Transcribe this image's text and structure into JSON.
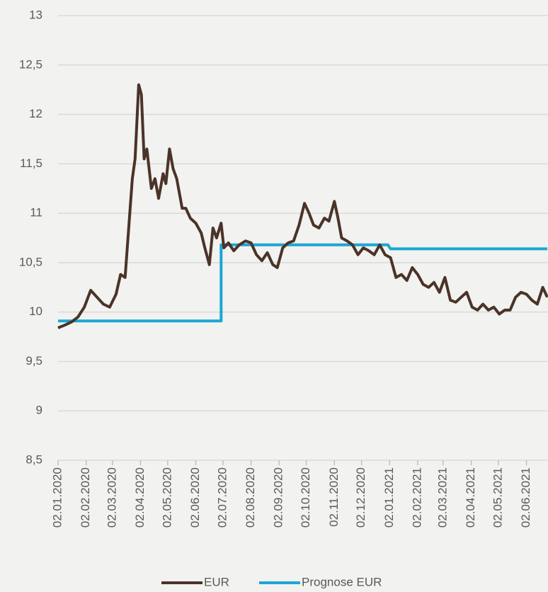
{
  "chart_data": {
    "type": "line",
    "xlim": [
      "02.01.2020",
      "25.06.2021"
    ],
    "xticks": [
      "02.01.2020",
      "02.02.2020",
      "02.03.2020",
      "02.04.2020",
      "02.05.2020",
      "02.06.2020",
      "02.07.2020",
      "02.08.2020",
      "02.09.2020",
      "02.10.2020",
      "02.11.2020",
      "02.12.2020",
      "02.01.2021",
      "02.02.2021",
      "02.03.2021",
      "02.04.2021",
      "02.05.2021",
      "02.06.2021"
    ],
    "ylim": [
      8.5,
      13
    ],
    "yticks": [
      {
        "value": 8.5,
        "label": "8,5"
      },
      9,
      {
        "value": 9.5,
        "label": "9,5"
      },
      10,
      {
        "value": 10.5,
        "label": "10,5"
      },
      11,
      {
        "value": 11.5,
        "label": "11,5"
      },
      12,
      {
        "value": 12.5,
        "label": "12,5"
      },
      13
    ],
    "grid": true,
    "legend": "bottom",
    "series": [
      {
        "name": "EUR",
        "color": "#4a3328",
        "x": [
          "02.01.2020",
          "10.01.2020",
          "17.01.2020",
          "24.01.2020",
          "31.01.2020",
          "07.02.2020",
          "14.02.2020",
          "21.02.2020",
          "28.02.2020",
          "06.03.2020",
          "11.03.2020",
          "16.03.2020",
          "20.03.2020",
          "24.03.2020",
          "27.03.2020",
          "31.03.2020",
          "03.04.2020",
          "06.04.2020",
          "09.04.2020",
          "14.04.2020",
          "18.04.2020",
          "22.04.2020",
          "27.04.2020",
          "30.04.2020",
          "04.05.2020",
          "08.05.2020",
          "12.05.2020",
          "18.05.2020",
          "22.05.2020",
          "27.05.2020",
          "02.06.2020",
          "08.06.2020",
          "12.06.2020",
          "17.06.2020",
          "21.06.2020",
          "25.06.2020",
          "30.06.2020",
          "03.07.2020",
          "08.07.2020",
          "14.07.2020",
          "20.07.2020",
          "27.07.2020",
          "02.08.2020",
          "08.08.2020",
          "14.08.2020",
          "20.08.2020",
          "26.08.2020",
          "31.08.2020",
          "06.09.2020",
          "12.09.2020",
          "18.09.2020",
          "24.09.2020",
          "30.09.2020",
          "05.10.2020",
          "10.10.2020",
          "16.10.2020",
          "22.10.2020",
          "27.10.2020",
          "02.11.2020",
          "06.11.2020",
          "10.11.2020",
          "16.11.2020",
          "22.11.2020",
          "28.11.2020",
          "04.12.2020",
          "10.12.2020",
          "16.12.2020",
          "22.12.2020",
          "28.12.2020",
          "03.01.2021",
          "09.01.2021",
          "15.01.2021",
          "21.01.2021",
          "27.01.2021",
          "02.02.2021",
          "08.02.2021",
          "14.02.2021",
          "20.02.2021",
          "26.02.2021",
          "04.03.2021",
          "10.03.2021",
          "16.03.2021",
          "22.03.2021",
          "28.03.2021",
          "03.04.2021",
          "09.04.2021",
          "15.04.2021",
          "21.04.2021",
          "27.04.2021",
          "03.05.2021",
          "09.05.2021",
          "15.05.2021",
          "21.05.2021",
          "27.05.2021",
          "02.06.2021",
          "08.06.2021",
          "14.06.2021",
          "20.06.2021",
          "25.06.2021"
        ],
        "values": [
          9.84,
          9.87,
          9.9,
          9.95,
          10.05,
          10.22,
          10.15,
          10.08,
          10.05,
          10.18,
          10.38,
          10.35,
          10.85,
          11.35,
          11.55,
          12.3,
          12.2,
          11.55,
          11.65,
          11.25,
          11.35,
          11.15,
          11.4,
          11.3,
          11.65,
          11.45,
          11.35,
          11.05,
          11.05,
          10.95,
          10.9,
          10.8,
          10.65,
          10.48,
          10.85,
          10.75,
          10.9,
          10.65,
          10.7,
          10.62,
          10.68,
          10.72,
          10.7,
          10.58,
          10.52,
          10.6,
          10.48,
          10.45,
          10.65,
          10.7,
          10.72,
          10.88,
          11.1,
          11.0,
          10.88,
          10.85,
          10.95,
          10.92,
          11.12,
          10.95,
          10.75,
          10.72,
          10.68,
          10.58,
          10.65,
          10.62,
          10.58,
          10.68,
          10.58,
          10.55,
          10.35,
          10.38,
          10.32,
          10.45,
          10.38,
          10.28,
          10.25,
          10.3,
          10.2,
          10.35,
          10.12,
          10.1,
          10.15,
          10.2,
          10.05,
          10.02,
          10.08,
          10.02,
          10.05,
          9.98,
          10.02,
          10.02,
          10.15,
          10.2,
          10.18,
          10.12,
          10.08,
          10.25,
          10.15
        ]
      },
      {
        "name": "Prognose EUR",
        "color": "#1aa7d4",
        "x": [
          "02.01.2020",
          "30.06.2020",
          "30.06.2020",
          "31.12.2020",
          "03.01.2021",
          "25.06.2021"
        ],
        "values": [
          9.91,
          9.91,
          10.68,
          10.68,
          10.64,
          10.64
        ]
      }
    ]
  }
}
